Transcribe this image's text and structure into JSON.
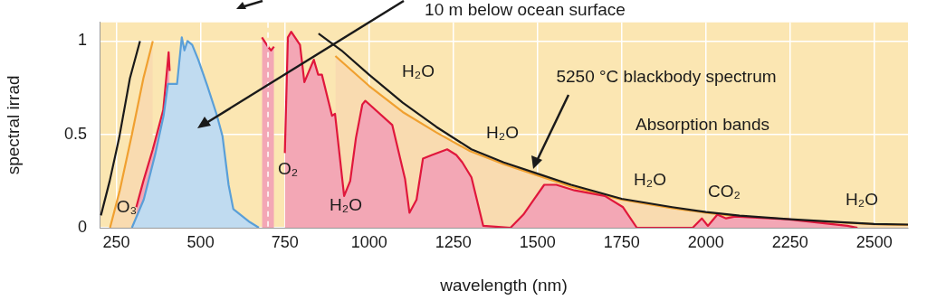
{
  "chart_data": {
    "type": "area",
    "xlabel": "wavelength (nm)",
    "ylabel": "spectral irrad",
    "xlim": [
      200,
      2600
    ],
    "xticks": [
      250,
      500,
      750,
      1000,
      1250,
      1500,
      1750,
      2000,
      2250,
      2500
    ],
    "ylim": [
      0,
      1.1
    ],
    "yticks": [
      0,
      0.5,
      1
    ],
    "grid": true,
    "legend": false,
    "marker": "none",
    "line_style": "solid",
    "series": [
      {
        "type": "area",
        "color": "#f0a030",
        "x": [
          231,
          260,
          296,
          330,
          358,
          365,
          580,
          808,
          900,
          1000,
          1100,
          1200,
          1300,
          1400,
          1500,
          1600,
          1750,
          1900,
          2000,
          2100,
          2250,
          2400,
          2500,
          2600
        ],
        "values": [
          0,
          0.2,
          0.5,
          0.8,
          1.0,
          null,
          null,
          null,
          0.92,
          0.76,
          0.62,
          0.51,
          0.41,
          0.34,
          0.28,
          0.22,
          0.15,
          0.105,
          0.08,
          0.06,
          0.042,
          0.028,
          0.019,
          0.015
        ]
      },
      {
        "type": "area",
        "color": "#e0173c",
        "x": [
          309,
          330,
          358,
          389,
          402,
          405,
          408,
          412,
          550,
          676,
          682,
          700,
          709,
          718,
          722,
          750,
          759,
          769,
          795,
          808,
          836,
          849,
          860,
          890,
          899,
          926,
          944,
          961,
          980,
          989,
          1069,
          1107,
          1120,
          1141,
          1160,
          1187,
          1232,
          1259,
          1277,
          1304,
          1339,
          1420,
          1458,
          1485,
          1520,
          1556,
          1610,
          1700,
          1754,
          1795,
          1961,
          1988,
          2006,
          2034,
          2060,
          2087,
          2242,
          2420,
          2450
        ],
        "values": [
          0.11,
          0.25,
          0.42,
          0.63,
          0.88,
          0.94,
          0.84,
          null,
          null,
          null,
          1.02,
          0.97,
          0.95,
          0.97,
          null,
          0.4,
          1.02,
          1.05,
          0.98,
          0.78,
          0.9,
          0.82,
          0.82,
          0.6,
          0.61,
          0.17,
          0.25,
          0.48,
          0.66,
          0.68,
          0.55,
          0.26,
          0.08,
          0.15,
          0.37,
          0.39,
          0.42,
          0.39,
          0.35,
          0.27,
          0.01,
          0,
          0.07,
          0.14,
          0.23,
          0.23,
          0.2,
          0.17,
          0.11,
          0,
          0,
          0.05,
          0.01,
          0.07,
          0.05,
          0.06,
          0.045,
          0.01,
          0
        ]
      },
      {
        "type": "area",
        "color": "#5a9fd8",
        "x": [
          296,
          331,
          366,
          390,
          403,
          430,
          444,
          452,
          461,
          475,
          493,
          520,
          547,
          565,
          583,
          597,
          646,
          673
        ],
        "values": [
          0,
          0.15,
          0.4,
          0.6,
          0.77,
          0.77,
          1.02,
          0.95,
          1.0,
          0.98,
          0.9,
          0.76,
          0.61,
          0.49,
          0.23,
          0.1,
          0.03,
          0
        ]
      },
      {
        "type": "line",
        "color": "#1a1a1a",
        "x": [
          204,
          230,
          258,
          290,
          320,
          339,
          570,
          799,
          850,
          918,
          1000,
          1100,
          1200,
          1304,
          1400,
          1500,
          1600,
          1750,
          1900,
          2000,
          2100,
          2250,
          2400,
          2500,
          2600
        ],
        "values": [
          0.066,
          0.25,
          0.48,
          0.8,
          1.0,
          null,
          null,
          null,
          1.04,
          0.95,
          0.82,
          0.67,
          0.54,
          0.42,
          0.35,
          0.29,
          0.23,
          0.155,
          0.11,
          0.084,
          0.065,
          0.045,
          0.03,
          0.02,
          0.017
        ]
      }
    ],
    "ref_lines": [
      {
        "axis": "x",
        "value": 700,
        "label": null,
        "color": "#ffffff",
        "line_style": "dashed"
      }
    ],
    "annotations": [
      "10 m below ocean surface",
      "5250 °C blackbody spectrum",
      "Absorption bands",
      "O₃",
      "O₂",
      "H₂O",
      "H₂O",
      "H₂O",
      "H₂O",
      "CO₂",
      "H₂O"
    ]
  }
}
